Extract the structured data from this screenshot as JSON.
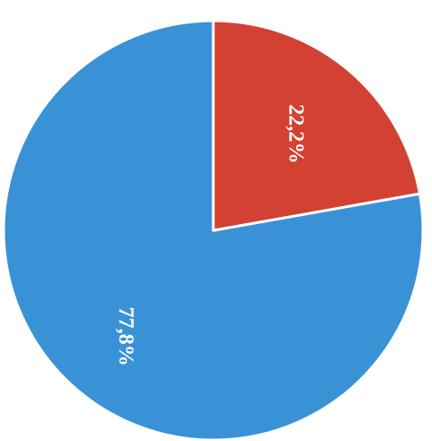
{
  "chart_data": {
    "type": "pie",
    "slices": [
      {
        "label": "77,8%",
        "value": 77.8,
        "color": "#3a92d6"
      },
      {
        "label": "22,2%",
        "value": 22.2,
        "color": "#d24132"
      }
    ],
    "title": "",
    "legend": "none",
    "start_angle_deg": 90,
    "direction": "counterclockwise",
    "label_rotation_deg": 90
  }
}
